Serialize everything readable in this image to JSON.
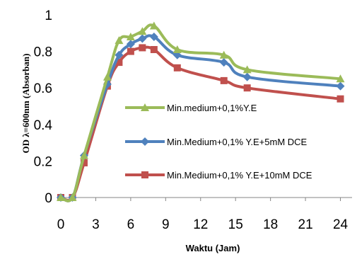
{
  "chart_data": {
    "type": "line",
    "xlabel": "Waktu (Jam)",
    "ylabel": "OD λ=600nm (Absorban)",
    "xlim": [
      0,
      25
    ],
    "ylim": [
      0,
      1
    ],
    "xticks": [
      0,
      3,
      6,
      9,
      12,
      15,
      18,
      21,
      24
    ],
    "yticks": [
      0,
      0.2,
      0.4,
      0.6,
      0.8,
      1
    ],
    "ytick_labels": [
      "0",
      "0.2",
      "0.4",
      "0.6",
      "0.8",
      "1"
    ],
    "grid": false,
    "legend_position": "center-right",
    "series": [
      {
        "name": "Min.medium+0,1%Y.E",
        "color": "#9bbb59",
        "marker": "triangle",
        "x": [
          0,
          1,
          2,
          4,
          5,
          6,
          7,
          8,
          10,
          14,
          16,
          24
        ],
        "y": [
          0,
          0,
          0.23,
          0.66,
          0.86,
          0.88,
          0.91,
          0.94,
          0.81,
          0.78,
          0.7,
          0.65
        ]
      },
      {
        "name": "Min.Medium+0,1% Y.E+5mM DCE",
        "color": "#4f81bd",
        "marker": "diamond",
        "x": [
          0,
          1,
          2,
          4,
          5,
          6,
          7,
          8,
          10,
          14,
          16,
          24
        ],
        "y": [
          0,
          0,
          0.23,
          0.62,
          0.78,
          0.84,
          0.87,
          0.88,
          0.78,
          0.74,
          0.66,
          0.61
        ]
      },
      {
        "name": "Min.Medium+0,1% Y.E+10mM DCE",
        "color": "#c0504d",
        "marker": "square",
        "x": [
          0,
          1,
          2,
          4,
          5,
          6,
          7,
          8,
          10,
          14,
          16,
          24
        ],
        "y": [
          0,
          0,
          0.19,
          0.61,
          0.74,
          0.8,
          0.82,
          0.81,
          0.71,
          0.64,
          0.6,
          0.54
        ]
      }
    ]
  }
}
